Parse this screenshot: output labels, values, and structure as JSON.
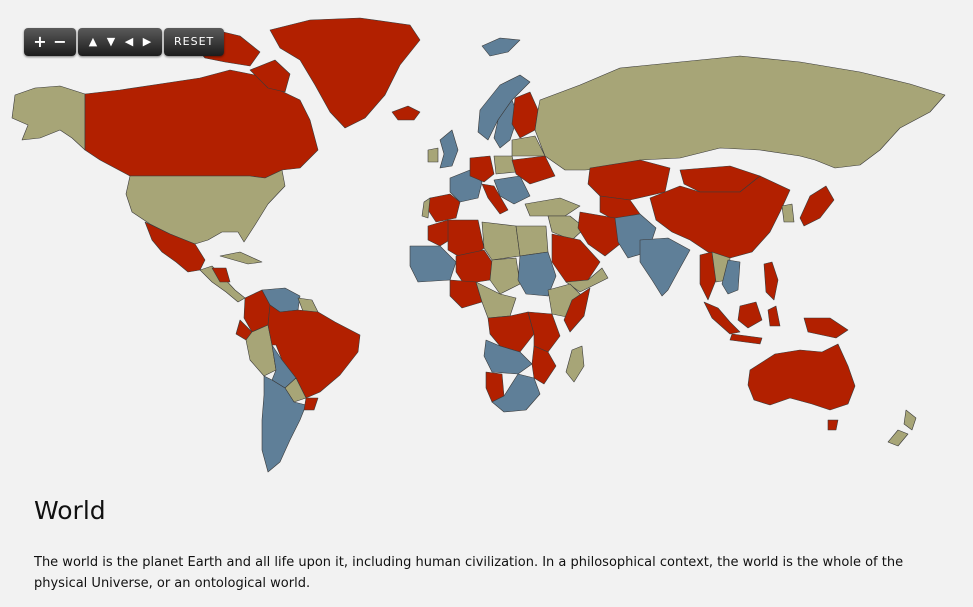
{
  "map": {
    "legend_colors": {
      "red": "#b22000",
      "khaki": "#a7a577",
      "blue": "#5f7f98"
    },
    "ocean_color": "#f2f2f2"
  },
  "toolbar": {
    "zoom_in_label": "+",
    "zoom_out_label": "−",
    "pan_up_label": "▲",
    "pan_down_label": "▼",
    "pan_left_label": "◀",
    "pan_right_label": "▶",
    "reset_label": "RESET"
  },
  "info": {
    "title": "World",
    "description": "The world is the planet Earth and all life upon it, including human civilization. In a philosophical context, the world is the whole of the physical Universe, or an ontological world."
  }
}
